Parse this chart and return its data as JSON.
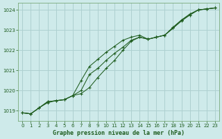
{
  "title": "Graphe pression niveau de la mer (hPa)",
  "background_color": "#ceeaea",
  "grid_color": "#aed0d0",
  "line_color": "#1e5c1e",
  "xlim": [
    -0.5,
    23.5
  ],
  "ylim": [
    1018.5,
    1024.35
  ],
  "yticks": [
    1019,
    1020,
    1021,
    1022,
    1023,
    1024
  ],
  "xticks": [
    0,
    1,
    2,
    3,
    4,
    5,
    6,
    7,
    8,
    9,
    10,
    11,
    12,
    13,
    14,
    15,
    16,
    17,
    18,
    19,
    20,
    21,
    22,
    23
  ],
  "series1_upper": [
    1018.9,
    1018.85,
    1019.15,
    1019.45,
    1019.5,
    1019.55,
    1019.75,
    1020.5,
    1021.2,
    1021.55,
    1021.9,
    1022.2,
    1022.5,
    1022.65,
    1022.75,
    1022.55,
    1022.65,
    1022.75,
    1023.1,
    1023.5,
    1023.8,
    1024.0,
    1024.05,
    1024.1
  ],
  "series2_mid": [
    1018.9,
    1018.85,
    1019.15,
    1019.45,
    1019.5,
    1019.55,
    1019.75,
    1020.0,
    1020.8,
    1021.1,
    1021.5,
    1021.85,
    1022.15,
    1022.5,
    1022.65,
    1022.55,
    1022.65,
    1022.75,
    1023.15,
    1023.5,
    1023.75,
    1024.0,
    1024.05,
    1024.1
  ],
  "series3_lower": [
    1018.9,
    1018.85,
    1019.15,
    1019.4,
    1019.5,
    1019.55,
    1019.75,
    1019.85,
    1020.15,
    1020.65,
    1021.1,
    1021.5,
    1022.0,
    1022.45,
    1022.65,
    1022.55,
    1022.65,
    1022.75,
    1023.1,
    1023.45,
    1023.75,
    1024.0,
    1024.05,
    1024.1
  ]
}
